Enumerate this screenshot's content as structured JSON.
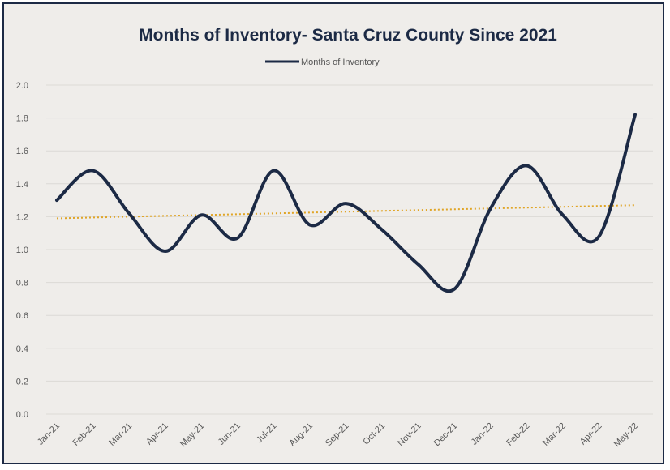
{
  "chart_data": {
    "type": "line",
    "title": "Months of Inventory- Santa Cruz County Since 2021",
    "xlabel": "",
    "ylabel": "",
    "ylim": [
      0,
      2.0
    ],
    "yticks": [
      "0.0",
      "0.2",
      "0.4",
      "0.6",
      "0.8",
      "1.0",
      "1.2",
      "1.4",
      "1.6",
      "1.8",
      "2.0"
    ],
    "categories": [
      "Jan-21",
      "Feb-21",
      "Mar-21",
      "Apr-21",
      "May-21",
      "Jun-21",
      "Jul-21",
      "Aug-21",
      "Sep-21",
      "Oct-21",
      "Nov-21",
      "Dec-21",
      "Jan-22",
      "Feb-22",
      "Mar-22",
      "Apr-22",
      "May-22"
    ],
    "series": [
      {
        "name": "Months of Inventory",
        "color": "#1c2a45",
        "values": [
          1.3,
          1.48,
          1.22,
          0.99,
          1.21,
          1.07,
          1.48,
          1.15,
          1.28,
          1.12,
          0.91,
          0.76,
          1.25,
          1.51,
          1.21,
          1.08,
          1.82
        ]
      }
    ],
    "trendline": {
      "type": "linear",
      "style": "dotted",
      "color": "#e0a526",
      "start": 1.19,
      "end": 1.27
    },
    "legend": "top-center",
    "grid": true
  }
}
